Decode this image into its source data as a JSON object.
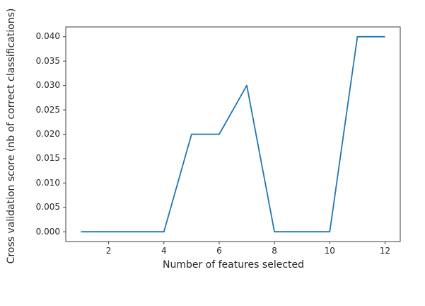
{
  "figure": {
    "background": "#ffffff",
    "axis_color": "#3d3d3d",
    "text_color": "#262626"
  },
  "chart_data": {
    "type": "line",
    "title": "",
    "xlabel": "Number of features selected",
    "ylabel": "Cross validation score (nb of correct classifications)",
    "x": [
      1,
      2,
      3,
      4,
      5,
      6,
      7,
      8,
      9,
      10,
      11,
      12
    ],
    "y": [
      0.0,
      0.0,
      0.0,
      0.0,
      0.02,
      0.02,
      0.03,
      0.0,
      0.0,
      0.0,
      0.04,
      0.04
    ],
    "line_color": "#1f77b4",
    "line_width": 1.8,
    "xlim": [
      0.45,
      12.55
    ],
    "ylim": [
      -0.002,
      0.042
    ],
    "xticks": [
      2,
      4,
      6,
      8,
      10,
      12
    ],
    "xtick_labels": [
      "2",
      "4",
      "6",
      "8",
      "10",
      "12"
    ],
    "yticks": [
      0.0,
      0.005,
      0.01,
      0.015,
      0.02,
      0.025,
      0.03,
      0.035,
      0.04
    ],
    "ytick_labels": [
      "0.000",
      "0.005",
      "0.010",
      "0.015",
      "0.020",
      "0.025",
      "0.030",
      "0.035",
      "0.040"
    ],
    "grid": false,
    "frame": "box",
    "legend": false,
    "markers": false
  }
}
